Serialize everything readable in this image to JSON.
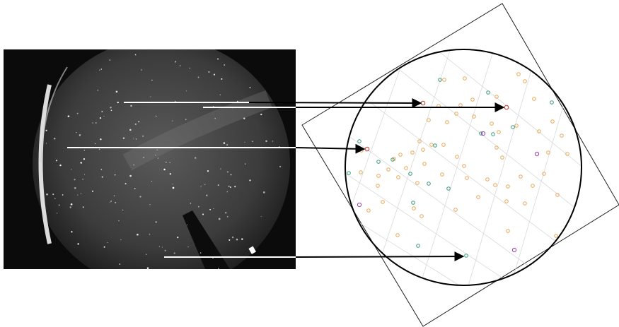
{
  "figure": {
    "left_panel": "all-sky-camera-image",
    "right_panel": "star-catalog-chart"
  },
  "colors": {
    "background": "#ffffff",
    "sky_photo_bg": "#0b0b0b",
    "sky_disk": "#4a4a4a",
    "arrow": "#000000",
    "marker_line": "#ffffff",
    "grid": "#d9d9d9",
    "frame": "#222222",
    "circle": "#000000",
    "orange_star": "#e8a85a",
    "teal_star": "#3a9a7a",
    "purple_star": "#9a3fb0",
    "red_star": "#c0392b"
  },
  "matches": [
    {
      "id": "match-1",
      "target_color": "red"
    },
    {
      "id": "match-2",
      "target_color": "red"
    },
    {
      "id": "match-3",
      "target_color": "red"
    },
    {
      "id": "match-4",
      "target_color": "teal"
    }
  ],
  "catalog_star_groups": [
    "orange",
    "teal",
    "purple",
    "red"
  ]
}
